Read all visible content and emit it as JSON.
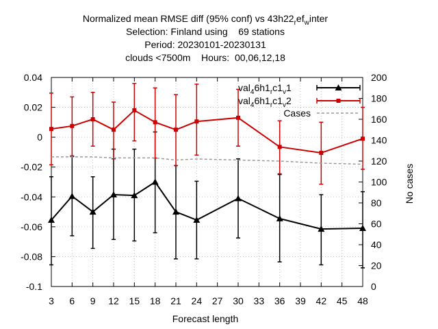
{
  "chart_data": {
    "type": "line",
    "title_lines": [
      "Normalized mean RMSE diff (95% conf) vs 43h22_ref_winter",
      "Selection: Finland using    69 stations",
      "Period: 20230101-20230131",
      "clouds <7500m    Hours:  00,06,12,18"
    ],
    "xlabel": "Forecast length",
    "ylabel": "",
    "y2label": "No cases",
    "x_ticks": [
      3,
      6,
      9,
      12,
      15,
      18,
      21,
      24,
      27,
      30,
      33,
      36,
      39,
      42,
      45,
      48
    ],
    "y_ticks": [
      "0.04",
      "0.02",
      "0",
      "-0.02",
      "-0.04",
      "-0.06",
      "-0.08",
      "-0.1"
    ],
    "y_tick_values": [
      0.04,
      0.02,
      0,
      -0.02,
      -0.04,
      -0.06,
      -0.08,
      -0.1
    ],
    "y2_ticks": [
      200,
      180,
      160,
      140,
      120,
      100,
      80,
      60,
      40,
      20,
      0
    ],
    "xlim": [
      3,
      48
    ],
    "ylim": [
      -0.1,
      0.04
    ],
    "y2lim": [
      0,
      200
    ],
    "grid": true,
    "legend_position": "top-right",
    "series": [
      {
        "name": "val_46h1_rc1_v1",
        "color": "#000000",
        "marker": "triangle",
        "axis": "y",
        "x": [
          3,
          6,
          9,
          12,
          15,
          18,
          21,
          24,
          30,
          36,
          42,
          48
        ],
        "y": [
          -0.0555,
          -0.0395,
          -0.05,
          -0.0385,
          -0.039,
          -0.03,
          -0.05,
          -0.0555,
          -0.041,
          -0.0545,
          -0.0615,
          -0.061
        ],
        "err_low": [
          -0.0855,
          -0.066,
          -0.0745,
          -0.0685,
          -0.0695,
          -0.064,
          -0.0815,
          -0.0815,
          -0.0675,
          -0.0835,
          -0.0855,
          -0.0875
        ],
        "err_high": [
          -0.0265,
          -0.013,
          -0.0265,
          -0.008,
          -0.008,
          0.0035,
          -0.019,
          -0.0295,
          -0.0145,
          -0.025,
          -0.0385,
          -0.0365
        ]
      },
      {
        "name": "val_46h1_rc1_v2",
        "color": "#cc0000",
        "marker": "square",
        "axis": "y",
        "x": [
          3,
          6,
          9,
          12,
          15,
          18,
          21,
          24,
          30,
          36,
          42,
          48
        ],
        "y": [
          0.0055,
          0.0075,
          0.012,
          0.005,
          0.018,
          0.01,
          0.005,
          0.0105,
          0.013,
          -0.0065,
          -0.0105,
          -0.001
        ],
        "err_low": [
          -0.0185,
          -0.0125,
          -0.006,
          -0.0145,
          -0.0025,
          -0.014,
          -0.019,
          -0.012,
          -0.006,
          -0.0245,
          -0.0315,
          -0.0215
        ],
        "err_high": [
          0.0295,
          0.027,
          0.03,
          0.0235,
          0.036,
          0.033,
          0.0285,
          0.0355,
          0.032,
          0.011,
          0.01,
          0.02
        ]
      },
      {
        "name": "Cases",
        "color": "#999999",
        "style": "dashed",
        "axis": "y2",
        "x": [
          3,
          6,
          9,
          12,
          15,
          18,
          21,
          24,
          30,
          36,
          42,
          48
        ],
        "y": [
          124,
          124,
          124,
          123,
          123,
          123,
          121,
          122,
          121,
          120,
          118,
          117
        ]
      }
    ]
  }
}
